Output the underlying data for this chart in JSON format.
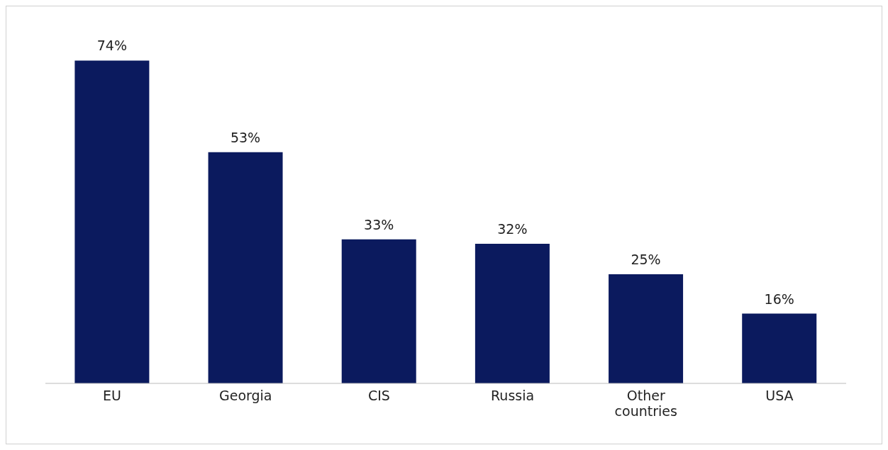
{
  "chart_data": {
    "type": "bar",
    "categories": [
      "EU",
      "Georgia",
      "CIS",
      "Russia",
      "Other countries",
      "USA"
    ],
    "values": [
      74,
      53,
      33,
      32,
      25,
      16
    ],
    "value_labels": [
      "74%",
      "53%",
      "33%",
      "32%",
      "25%",
      "16%"
    ],
    "color": "#0b1a5e"
  }
}
